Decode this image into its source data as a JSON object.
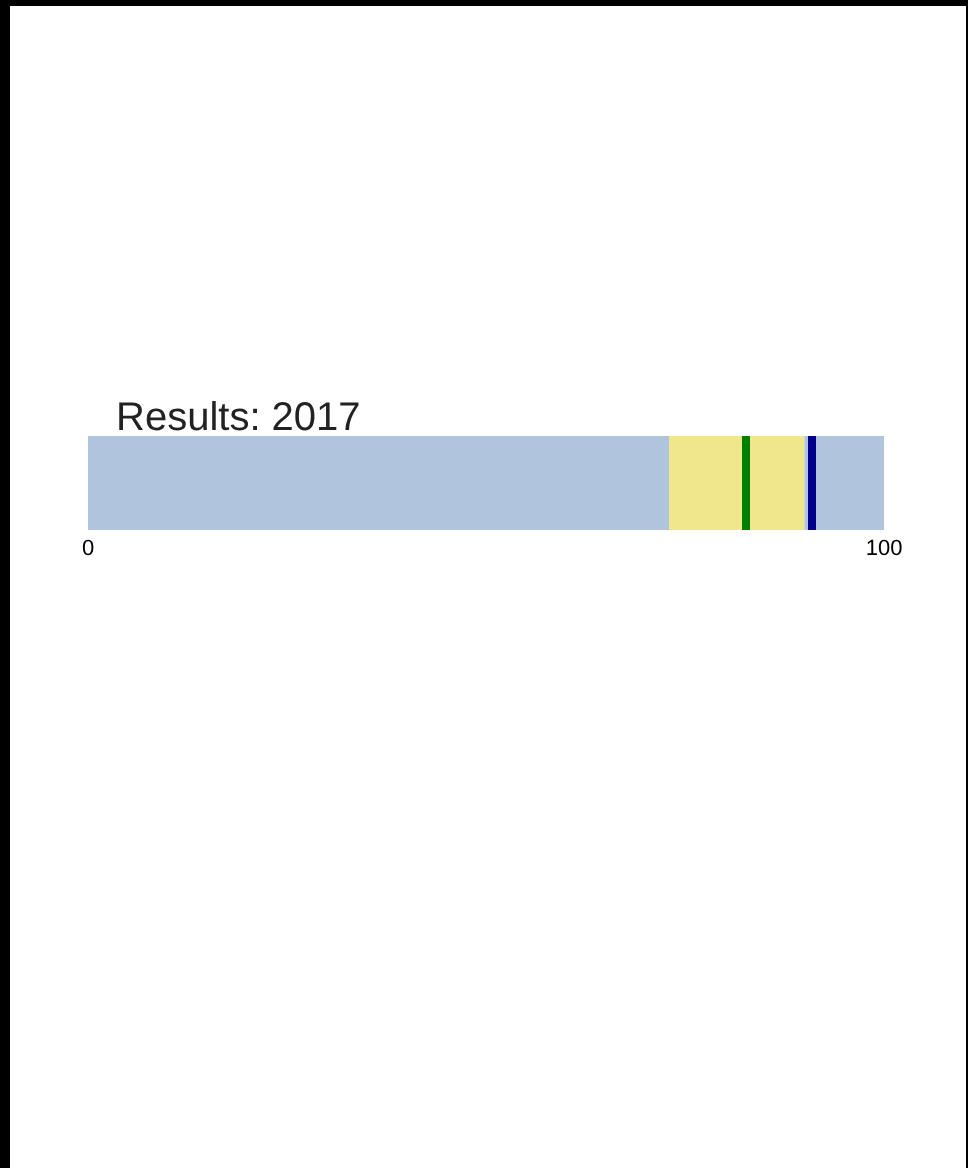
{
  "chart_data": {
    "type": "bar",
    "title": "Results: 2017",
    "orientation": "horizontal",
    "stacked": true,
    "categories": [
      null
    ],
    "xlim": [
      0,
      100
    ],
    "xticks": [
      0,
      100
    ],
    "series": [
      {
        "color": "#b0c4de",
        "values": [
          73
        ]
      },
      {
        "color": "#f0e68c",
        "values": [
          17
        ]
      },
      {
        "color": "#b0c4de",
        "values": [
          10
        ]
      }
    ],
    "ref_lines": [
      {
        "axis": "x",
        "value": 91,
        "color": "#00008b"
      },
      {
        "axis": "x",
        "value": 82.5,
        "color": "#008000"
      }
    ]
  }
}
